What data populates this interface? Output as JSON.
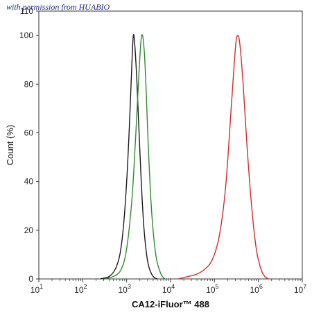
{
  "watermark": "with permission from HUABIO",
  "chart_data": {
    "type": "line",
    "xlabel": "CA12-iFluor™ 488",
    "ylabel": "Count  (%)",
    "x_scale": "log",
    "xlim": [
      10,
      10000000
    ],
    "ylim": [
      0,
      110
    ],
    "x_ticks": [
      {
        "value": 10,
        "base": "10",
        "exp": "1"
      },
      {
        "value": 100,
        "base": "10",
        "exp": "2"
      },
      {
        "value": 1000,
        "base": "10",
        "exp": "3"
      },
      {
        "value": 10000,
        "base": "10",
        "exp": "4"
      },
      {
        "value": 100000,
        "base": "10",
        "exp": "5"
      },
      {
        "value": 1000000,
        "base": "10",
        "exp": "6"
      },
      {
        "value": 10000000,
        "base": "10",
        "exp": "7"
      }
    ],
    "y_ticks": [
      0,
      20,
      40,
      60,
      80,
      100,
      110
    ],
    "grid": false,
    "legend": "none",
    "series": [
      {
        "color": "#1a1a1a",
        "x": [
          250,
          400,
          550,
          700,
          850,
          1000,
          1150,
          1300,
          1420,
          1550,
          1700,
          1900,
          2150,
          2450,
          2800,
          3200,
          3700,
          4300,
          5000
        ],
        "y": [
          0,
          1,
          4,
          10,
          22,
          40,
          62,
          86,
          100,
          95,
          82,
          62,
          40,
          22,
          11,
          5,
          2,
          0.5,
          0
        ]
      },
      {
        "color": "#2e8b2e",
        "x": [
          320,
          500,
          700,
          900,
          1100,
          1350,
          1600,
          1850,
          2100,
          2300,
          2550,
          2800,
          3100,
          3500,
          4000,
          4700,
          5500,
          6500,
          7500
        ],
        "y": [
          0,
          1,
          3,
          8,
          18,
          35,
          58,
          80,
          97,
          100,
          92,
          76,
          55,
          35,
          20,
          9,
          4,
          1,
          0
        ]
      },
      {
        "color": "#d42a2a",
        "x": [
          15000,
          25000,
          40000,
          60000,
          90000,
          130000,
          180000,
          240000,
          300000,
          340000,
          380000,
          450000,
          550000,
          700000,
          900000,
          1150000,
          1400000,
          1700000
        ],
        "y": [
          0,
          1,
          2,
          4,
          8,
          18,
          38,
          70,
          95,
          100,
          96,
          80,
          55,
          30,
          12,
          4,
          1,
          0
        ]
      }
    ]
  }
}
